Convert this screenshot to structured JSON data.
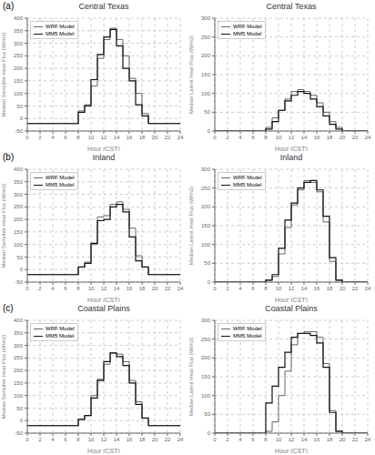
{
  "chart_data": [
    {
      "type": "line",
      "line_style": "step",
      "title": "Central Texas",
      "annotations": [
        "(a)"
      ],
      "x_label": "Hour (CST)",
      "y_label": "Median Sensible Heat Flux (W/m2)",
      "x": [
        0,
        1,
        2,
        3,
        4,
        5,
        6,
        7,
        8,
        9,
        10,
        11,
        12,
        13,
        14,
        15,
        16,
        17,
        18,
        19,
        20,
        21,
        22,
        23,
        24
      ],
      "xlim": [
        0,
        24
      ],
      "xticks": [
        0,
        2,
        4,
        6,
        8,
        10,
        12,
        14,
        16,
        18,
        20,
        22,
        24
      ],
      "ylim": [
        -50,
        400
      ],
      "yticks": [
        -50,
        0,
        50,
        100,
        150,
        200,
        250,
        300,
        350,
        400
      ],
      "grid": true,
      "legend": "upper left",
      "series": [
        {
          "name": "WRF Model",
          "color": "#666666",
          "values": [
            -20,
            -20,
            -20,
            -20,
            -20,
            -20,
            -20,
            -20,
            30,
            55,
            130,
            240,
            315,
            360,
            315,
            250,
            160,
            100,
            20,
            -20,
            -20,
            -20,
            -20,
            -20,
            -20
          ]
        },
        {
          "name": "MM5 Model",
          "color": "#111111",
          "values": [
            -20,
            -20,
            -20,
            -20,
            -20,
            -20,
            -20,
            -20,
            25,
            50,
            155,
            255,
            325,
            355,
            290,
            200,
            150,
            55,
            10,
            -20,
            -20,
            -20,
            -20,
            -20,
            -20
          ]
        }
      ]
    },
    {
      "type": "line",
      "line_style": "step",
      "title": "Central Texas",
      "x_label": "Hour (CST)",
      "y_label": "Median Latent Heat Flux (W/m2)",
      "x": [
        0,
        1,
        2,
        3,
        4,
        5,
        6,
        7,
        8,
        9,
        10,
        11,
        12,
        13,
        14,
        15,
        16,
        17,
        18,
        19,
        20,
        21,
        22,
        23,
        24
      ],
      "xlim": [
        0,
        24
      ],
      "xticks": [
        0,
        2,
        4,
        6,
        8,
        10,
        12,
        14,
        16,
        18,
        20,
        22,
        24
      ],
      "ylim": [
        0,
        300
      ],
      "yticks": [
        0,
        50,
        100,
        150,
        200,
        250,
        300
      ],
      "grid": true,
      "legend": "upper left",
      "series": [
        {
          "name": "WRF Model",
          "color": "#666666",
          "values": [
            0,
            0,
            0,
            0,
            0,
            0,
            0,
            0,
            10,
            35,
            55,
            85,
            105,
            110,
            105,
            95,
            75,
            50,
            25,
            10,
            0,
            0,
            0,
            0,
            0
          ]
        },
        {
          "name": "MM5 Model",
          "color": "#111111",
          "values": [
            0,
            0,
            0,
            0,
            0,
            0,
            0,
            0,
            5,
            25,
            55,
            80,
            95,
            105,
            100,
            85,
            65,
            40,
            18,
            5,
            0,
            0,
            0,
            0,
            0
          ]
        }
      ]
    },
    {
      "type": "line",
      "line_style": "step",
      "title": "Inland",
      "annotations": [
        "(b)"
      ],
      "x_label": "Hour (CST)",
      "y_label": "Median Sensible Heat Flux (W/m2)",
      "x": [
        0,
        1,
        2,
        3,
        4,
        5,
        6,
        7,
        8,
        9,
        10,
        11,
        12,
        13,
        14,
        15,
        16,
        17,
        18,
        19,
        20,
        21,
        22,
        23,
        24
      ],
      "xlim": [
        0,
        24
      ],
      "xticks": [
        0,
        2,
        4,
        6,
        8,
        10,
        12,
        14,
        16,
        18,
        20,
        22,
        24
      ],
      "ylim": [
        -50,
        400
      ],
      "yticks": [
        -50,
        0,
        50,
        100,
        150,
        200,
        250,
        300,
        350,
        400
      ],
      "grid": true,
      "legend": "upper left",
      "series": [
        {
          "name": "WRF Model",
          "color": "#666666",
          "values": [
            -20,
            -20,
            -20,
            -20,
            -20,
            -20,
            -20,
            -20,
            10,
            30,
            100,
            210,
            215,
            260,
            270,
            240,
            165,
            55,
            10,
            -20,
            -20,
            -20,
            -20,
            -20,
            -20
          ]
        },
        {
          "name": "MM5 Model",
          "color": "#111111",
          "values": [
            -20,
            -20,
            -20,
            -20,
            -20,
            -20,
            -20,
            -20,
            10,
            25,
            105,
            195,
            200,
            250,
            260,
            230,
            130,
            35,
            10,
            -20,
            -20,
            -20,
            -20,
            -20,
            -20
          ]
        }
      ]
    },
    {
      "type": "line",
      "line_style": "step",
      "title": "Inland",
      "x_label": "Hour (CST)",
      "y_label": "Median Latent Heat Flux (W/m2)",
      "x": [
        0,
        1,
        2,
        3,
        4,
        5,
        6,
        7,
        8,
        9,
        10,
        11,
        12,
        13,
        14,
        15,
        16,
        17,
        18,
        19,
        20,
        21,
        22,
        23,
        24
      ],
      "xlim": [
        0,
        24
      ],
      "xticks": [
        0,
        2,
        4,
        6,
        8,
        10,
        12,
        14,
        16,
        18,
        20,
        22,
        24
      ],
      "ylim": [
        0,
        300
      ],
      "yticks": [
        0,
        50,
        100,
        150,
        200,
        250,
        300
      ],
      "grid": true,
      "legend": "upper left",
      "series": [
        {
          "name": "WRF Model",
          "color": "#666666",
          "values": [
            0,
            0,
            0,
            0,
            0,
            0,
            0,
            0,
            5,
            15,
            75,
            145,
            205,
            245,
            270,
            265,
            240,
            160,
            55,
            5,
            0,
            0,
            0,
            0,
            0
          ]
        },
        {
          "name": "MM5 Model",
          "color": "#111111",
          "values": [
            0,
            0,
            0,
            0,
            0,
            0,
            0,
            0,
            5,
            20,
            90,
            165,
            210,
            250,
            265,
            270,
            245,
            175,
            65,
            5,
            0,
            0,
            0,
            0,
            0
          ]
        }
      ]
    },
    {
      "type": "line",
      "line_style": "step",
      "title": "Coastal Plains",
      "annotations": [
        "(c)"
      ],
      "x_label": "Hour (CST)",
      "y_label": "Median Sensible Heat Flux (W/m2)",
      "x": [
        0,
        1,
        2,
        3,
        4,
        5,
        6,
        7,
        8,
        9,
        10,
        11,
        12,
        13,
        14,
        15,
        16,
        17,
        18,
        19,
        20,
        21,
        22,
        23,
        24
      ],
      "xlim": [
        0,
        24
      ],
      "xticks": [
        0,
        2,
        4,
        6,
        8,
        10,
        12,
        14,
        16,
        18,
        20,
        22,
        24
      ],
      "ylim": [
        -50,
        400
      ],
      "yticks": [
        -50,
        0,
        50,
        100,
        150,
        200,
        250,
        300,
        350,
        400
      ],
      "grid": true,
      "legend": "upper left",
      "series": [
        {
          "name": "WRF Model",
          "color": "#666666",
          "values": [
            -20,
            -20,
            -20,
            -20,
            -20,
            -20,
            -20,
            -20,
            5,
            20,
            100,
            165,
            225,
            270,
            265,
            235,
            160,
            75,
            10,
            -20,
            -20,
            -20,
            -20,
            -20,
            -20
          ]
        },
        {
          "name": "MM5 Model",
          "color": "#111111",
          "values": [
            -20,
            -20,
            -20,
            -20,
            -20,
            -20,
            -20,
            -20,
            5,
            20,
            90,
            160,
            235,
            270,
            255,
            220,
            150,
            65,
            10,
            -20,
            -20,
            -20,
            -20,
            -20,
            -20
          ]
        }
      ]
    },
    {
      "type": "line",
      "line_style": "step",
      "title": "Coastal Plains",
      "x_label": "Hour (CST)",
      "y_label": "Median Latent Heat Flux (W/m2)",
      "x": [
        0,
        1,
        2,
        3,
        4,
        5,
        6,
        7,
        8,
        9,
        10,
        11,
        12,
        13,
        14,
        15,
        16,
        17,
        18,
        19,
        20,
        21,
        22,
        23,
        24
      ],
      "xlim": [
        0,
        24
      ],
      "xticks": [
        0,
        2,
        4,
        6,
        8,
        10,
        12,
        14,
        16,
        18,
        20,
        22,
        24
      ],
      "ylim": [
        0,
        300
      ],
      "yticks": [
        0,
        50,
        100,
        150,
        200,
        250,
        300
      ],
      "grid": true,
      "legend": "upper left",
      "series": [
        {
          "name": "WRF Model",
          "color": "#666666",
          "values": [
            0,
            0,
            0,
            0,
            0,
            0,
            0,
            0,
            5,
            30,
            100,
            165,
            235,
            265,
            270,
            270,
            255,
            185,
            60,
            5,
            0,
            0,
            0,
            0,
            0
          ]
        },
        {
          "name": "MM5 Model",
          "color": "#111111",
          "values": [
            0,
            0,
            0,
            0,
            0,
            0,
            0,
            0,
            80,
            125,
            175,
            215,
            255,
            265,
            265,
            260,
            240,
            175,
            55,
            5,
            0,
            0,
            0,
            0,
            0
          ]
        }
      ]
    }
  ]
}
